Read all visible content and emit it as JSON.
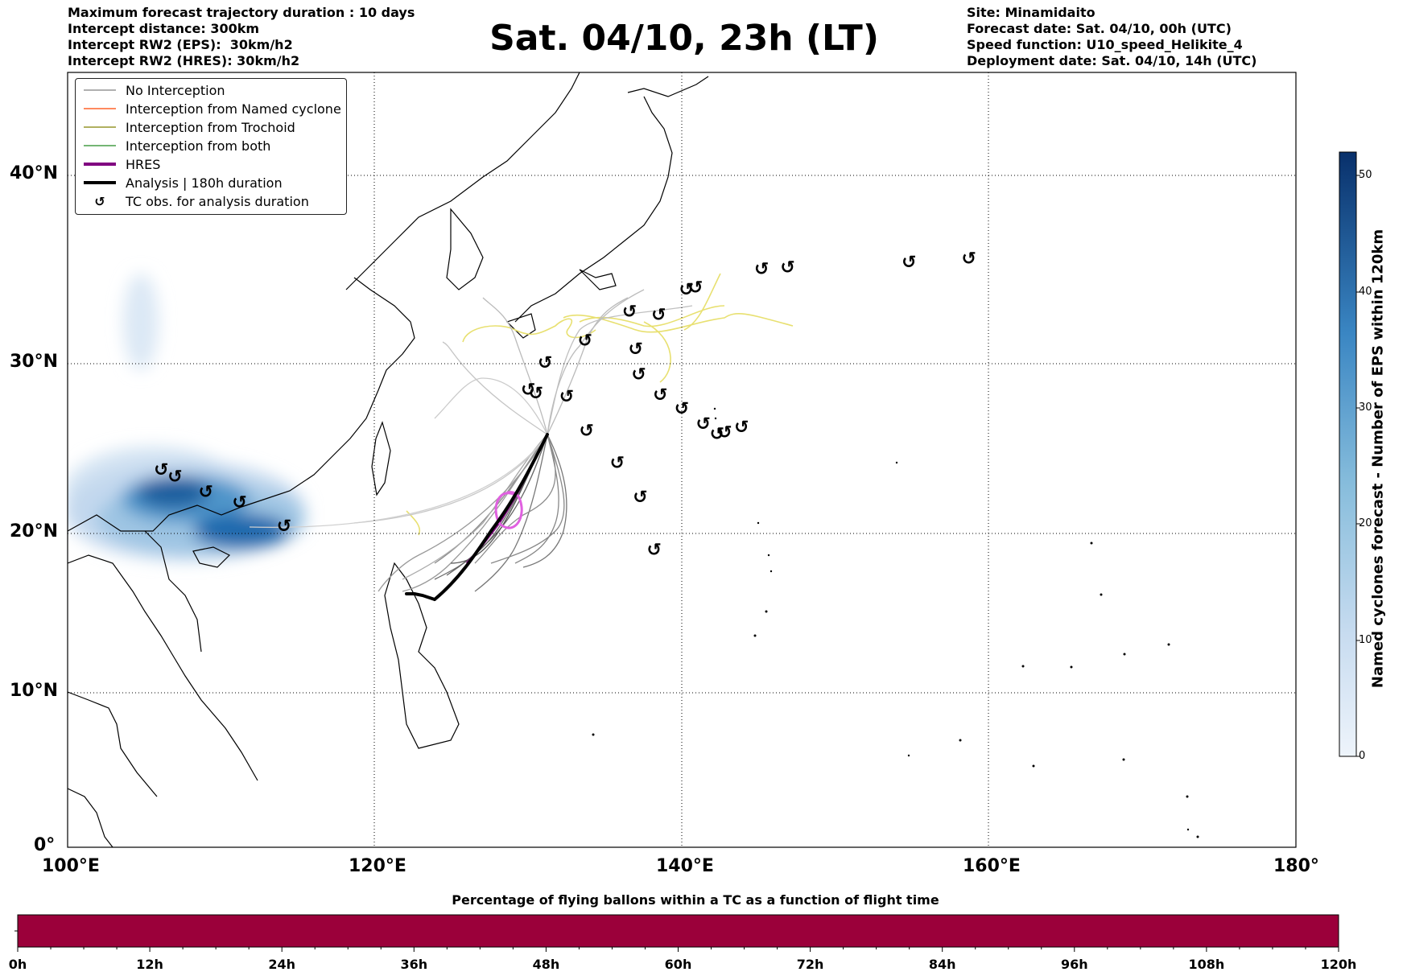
{
  "info_left": [
    "Maximum forecast trajectory duration : 10 days",
    "Intercept distance: 300km",
    "Intercept RW2 (EPS):  30km/h2",
    "Intercept RW2 (HRES): 30km/h2"
  ],
  "title": "Sat. 04/10, 23h (LT)",
  "info_right": [
    "Site: Minamidaito",
    "Forecast date: Sat. 04/10, 00h (UTC)",
    "Speed function: U10_speed_Helikite_4",
    "Deployment date: Sat. 04/10, 14h (UTC)"
  ],
  "map": {
    "lon_ticks": [
      "100°E",
      "120°E",
      "140°E",
      "160°E",
      "180°"
    ],
    "lat_ticks": [
      "40°N",
      "30°N",
      "20°N",
      "10°N",
      "0°"
    ],
    "lon_range": [
      100,
      180
    ],
    "lat_range": [
      0,
      45.5
    ]
  },
  "legend": [
    {
      "label": "No Interception",
      "color": "#808080",
      "style": "thin-line"
    },
    {
      "label": "Interception from Named cyclone",
      "color": "#ff4500",
      "style": "thin-line"
    },
    {
      "label": "Interception from Trochoid",
      "color": "#808000",
      "style": "thin-line"
    },
    {
      "label": "Interception from both",
      "color": "#228b22",
      "style": "thin-line"
    },
    {
      "label": "HRES",
      "color": "#800080",
      "style": "thick-line"
    },
    {
      "label": "Analysis | 180h duration",
      "color": "#000000",
      "style": "thick-line"
    },
    {
      "label": "TC obs. for analysis duration",
      "color": "#000000",
      "style": "tc-symbol"
    }
  ],
  "tc_symbol": "↺",
  "tc_observations": [
    [
      106.1,
      22.2
    ],
    [
      107.0,
      21.8
    ],
    [
      109.0,
      20.9
    ],
    [
      111.2,
      20.3
    ],
    [
      114.1,
      18.9
    ],
    [
      130.0,
      26.9
    ],
    [
      130.5,
      26.7
    ],
    [
      131.1,
      28.5
    ],
    [
      132.5,
      26.5
    ],
    [
      133.7,
      29.8
    ],
    [
      133.8,
      24.5
    ],
    [
      135.8,
      22.6
    ],
    [
      136.6,
      31.5
    ],
    [
      137.0,
      29.3
    ],
    [
      137.2,
      27.8
    ],
    [
      137.3,
      20.6
    ],
    [
      138.2,
      17.5
    ],
    [
      138.5,
      31.3
    ],
    [
      138.6,
      26.6
    ],
    [
      140.0,
      25.8
    ],
    [
      140.3,
      32.8
    ],
    [
      140.9,
      32.9
    ],
    [
      141.4,
      24.9
    ],
    [
      142.3,
      24.3
    ],
    [
      142.8,
      24.4
    ],
    [
      143.9,
      24.7
    ],
    [
      145.2,
      34.0
    ],
    [
      146.9,
      34.1
    ],
    [
      154.8,
      34.4
    ],
    [
      158.7,
      34.6
    ]
  ],
  "colorbar": {
    "label": "Named cyclones forecast - Number of EPS within 120km",
    "ticks": [
      "0",
      "10",
      "20",
      "30",
      "40",
      "50"
    ],
    "min": 0,
    "max": 52,
    "colors": [
      "#eef4fb",
      "#08306b"
    ]
  },
  "bottom_bar": {
    "title": "Percentage of flying ballons within a TC as a function of flight time",
    "ticks": [
      "0h",
      "12h",
      "24h",
      "36h",
      "48h",
      "60h",
      "72h",
      "84h",
      "96h",
      "108h",
      "120h"
    ],
    "fill_color": "#9b003a",
    "fill_fraction": 1.0
  }
}
